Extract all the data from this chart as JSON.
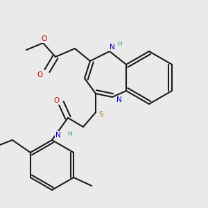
{
  "bg_color": "#eaeaea",
  "bond_color": "#1a1a1a",
  "bond_width": 1.5,
  "dbo": 0.012,
  "atom_colors": {
    "N": "#0000cc",
    "O": "#cc0000",
    "S": "#aa8800",
    "H_N": "#4a9999"
  },
  "fs": 7.5,
  "figsize": [
    3.0,
    3.0
  ],
  "dpi": 100
}
